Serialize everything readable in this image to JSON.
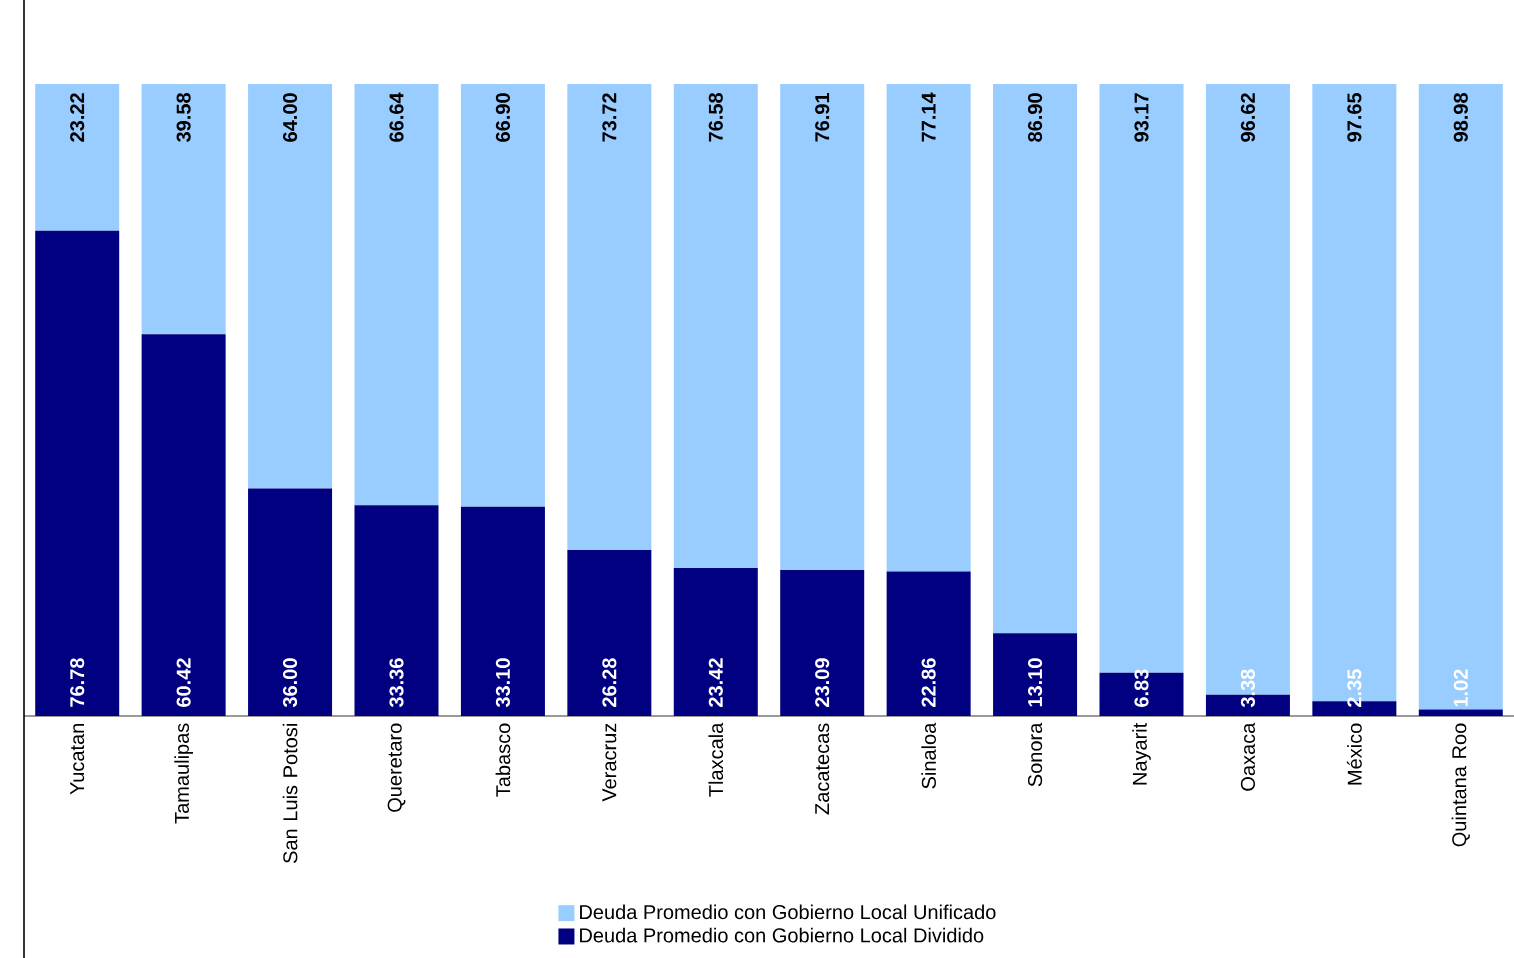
{
  "chart_data": {
    "type": "bar",
    "stacked": true,
    "legend": "bottom",
    "categories": [
      "Yucatan",
      "Tamaulipas",
      "San Luis Potosi",
      "Queretaro",
      "Tabasco",
      "Veracruz",
      "Tlaxcala",
      "Zacatecas",
      "Sinaloa",
      "Sonora",
      "Nayarit",
      "Oaxaca",
      "México",
      "Quintana Roo"
    ],
    "series": [
      {
        "name": "Deuda Promedio con Gobierno Local Dividido",
        "color": "#000080",
        "values": [
          76.78,
          60.42,
          36.0,
          33.36,
          33.1,
          26.28,
          23.42,
          23.09,
          22.86,
          13.1,
          6.83,
          3.38,
          2.35,
          1.02
        ],
        "value_labels": [
          "76.78",
          "60.42",
          "36.00",
          "33.36",
          "33.10",
          "26.28",
          "23.42",
          "23.09",
          "22.86",
          "13.10",
          "6.83",
          "3.38",
          "2.35",
          "1.02"
        ]
      },
      {
        "name": "Deuda Promedio con Gobierno Local Unificado",
        "color": "#99ccff",
        "values": [
          23.22,
          39.58,
          64.0,
          66.64,
          66.9,
          73.72,
          76.58,
          76.91,
          77.14,
          86.9,
          93.17,
          96.62,
          97.65,
          98.98
        ],
        "value_labels": [
          "23.22",
          "39.58",
          "64.00",
          "66.64",
          "66.90",
          "73.72",
          "76.58",
          "76.91",
          "77.14",
          "86.90",
          "93.17",
          "96.62",
          "97.65",
          "98.98"
        ]
      }
    ]
  }
}
